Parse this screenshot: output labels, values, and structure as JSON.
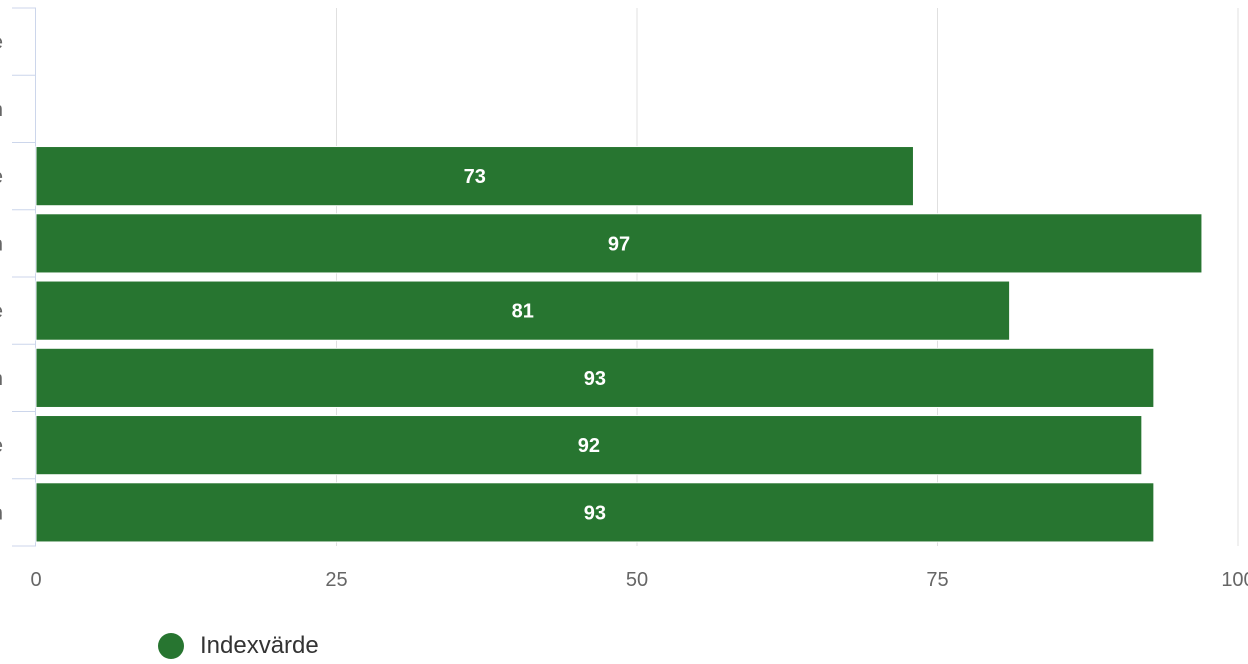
{
  "chart_data": {
    "type": "bar",
    "orientation": "horizontal",
    "categories": [
      "e",
      "n",
      "e",
      "n",
      "e",
      "n",
      "e",
      "n"
    ],
    "series": [
      {
        "name": "Indexvärde",
        "values": [
          0,
          0,
          73,
          97,
          81,
          93,
          92,
          93
        ]
      }
    ],
    "xlim": [
      0,
      100
    ],
    "xticks": [
      0,
      25,
      50,
      75,
      100
    ],
    "grid": true,
    "legend": "bottom-left",
    "data_labels": true
  },
  "colors": {
    "bar": "#277530",
    "grid": "#e0e0e0",
    "axis": "#ccd6eb",
    "tick_text": "#666666",
    "label_text": "#ffffff"
  }
}
